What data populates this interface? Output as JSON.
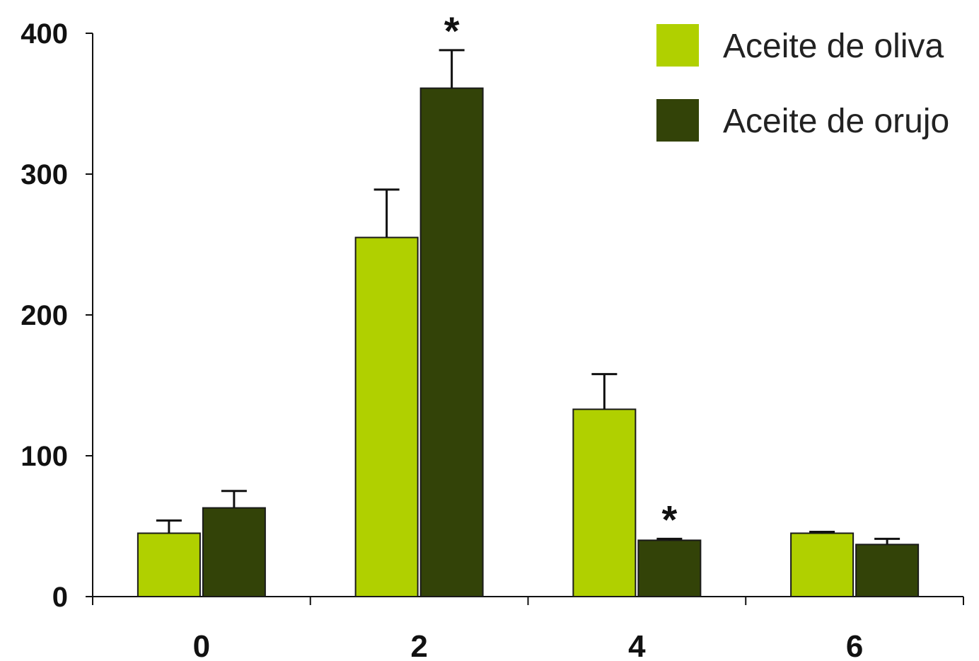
{
  "chart_data": {
    "type": "bar",
    "title": "",
    "xlabel": "",
    "ylabel": "",
    "ylim": [
      0,
      400
    ],
    "yticks": [
      0,
      100,
      200,
      300,
      400
    ],
    "categories": [
      "0",
      "2",
      "4",
      "6"
    ],
    "series": [
      {
        "name": "Aceite de oliva",
        "color": "#b0d000",
        "values": [
          45,
          255,
          133,
          45
        ],
        "errors": [
          9,
          34,
          25,
          1
        ]
      },
      {
        "name": "Aceite de orujo",
        "color": "#334308",
        "values": [
          63,
          361,
          40,
          37
        ],
        "errors": [
          12,
          27,
          1,
          4
        ]
      }
    ],
    "significance": [
      {
        "category": "2",
        "series": "Aceite de orujo",
        "label": "*"
      },
      {
        "category": "4",
        "series": "Aceite de orujo",
        "label": "*"
      }
    ],
    "legend_position": "top-right",
    "grid": false
  }
}
